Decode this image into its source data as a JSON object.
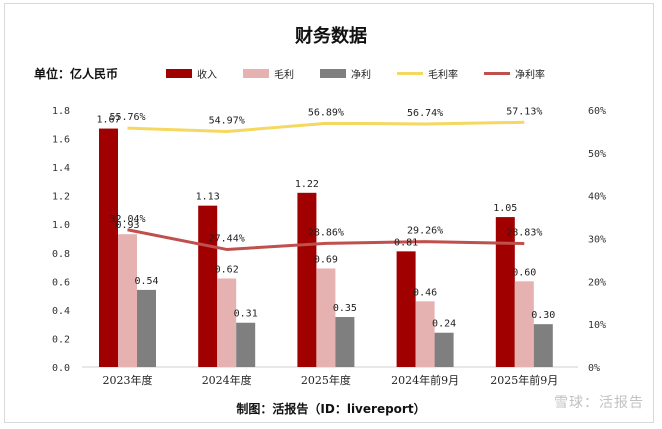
{
  "title": "财务数据",
  "unit": "单位：亿人民币",
  "credit": "制图：活报告（ID：livereport）",
  "watermark": "雪球：活报告",
  "legend": {
    "revenue": "收入",
    "gross": "毛利",
    "net": "净利",
    "gross_margin": "毛利率",
    "net_margin": "净利率"
  },
  "colors": {
    "revenue": "#a00000",
    "gross": "#e5b1b1",
    "net": "#7f7f7f",
    "gross_margin": "#f5d860",
    "net_margin": "#c0504d"
  },
  "chart_data": {
    "type": "bar",
    "categories": [
      "2023年度",
      "2024年度",
      "2025年度",
      "2024年前9月",
      "2025年前9月"
    ],
    "series": [
      {
        "name": "收入",
        "kind": "bar",
        "values": [
          1.67,
          1.13,
          1.22,
          0.81,
          1.05
        ],
        "labels": [
          "1.67",
          "1.13",
          "1.22",
          "0.81",
          "1.05"
        ]
      },
      {
        "name": "毛利",
        "kind": "bar",
        "values": [
          0.93,
          0.62,
          0.69,
          0.46,
          0.6
        ],
        "labels": [
          "0.93",
          "0.62",
          "0.69",
          "0.46",
          "0.60"
        ]
      },
      {
        "name": "净利",
        "kind": "bar",
        "values": [
          0.54,
          0.31,
          0.35,
          0.24,
          0.3
        ],
        "labels": [
          "0.54",
          "0.31",
          "0.35",
          "0.24",
          "0.30"
        ]
      },
      {
        "name": "毛利率",
        "kind": "line",
        "axis": "right",
        "values": [
          55.76,
          54.97,
          56.89,
          56.74,
          57.13
        ],
        "labels": [
          "55.76%",
          "54.97%",
          "56.89%",
          "56.74%",
          "57.13%"
        ]
      },
      {
        "name": "净利率",
        "kind": "line",
        "axis": "right",
        "values": [
          32.04,
          27.44,
          28.86,
          29.26,
          28.83
        ],
        "labels": [
          "32.04%",
          "27.44%",
          "28.86%",
          "29.26%",
          "28.83%"
        ]
      }
    ],
    "ylim": [
      0,
      1.8
    ],
    "yticks": [
      "0.0",
      "0.2",
      "0.4",
      "0.6",
      "0.8",
      "1.0",
      "1.2",
      "1.4",
      "1.6",
      "1.8"
    ],
    "y2lim": [
      0,
      60
    ],
    "y2ticks": [
      "0%",
      "10%",
      "20%",
      "30%",
      "40%",
      "50%",
      "60%"
    ],
    "grid": false,
    "legend_position": "top"
  }
}
